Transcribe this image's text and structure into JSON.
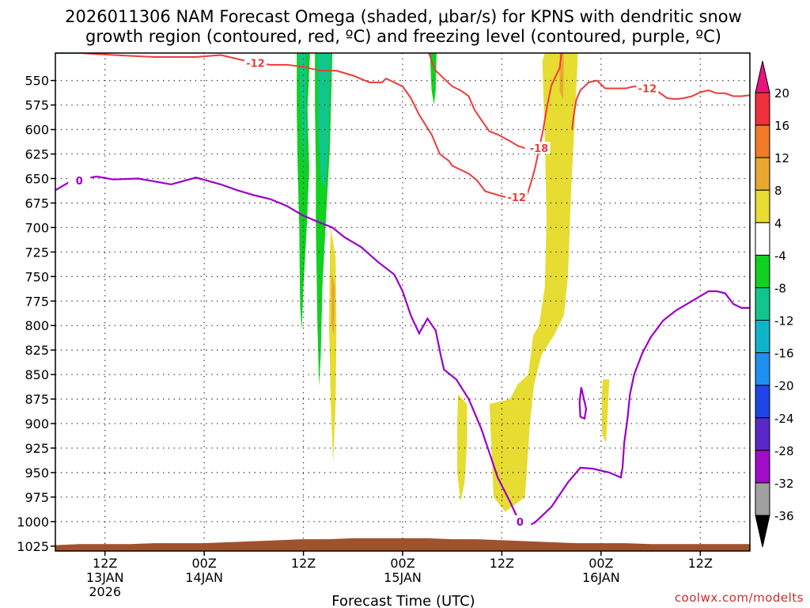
{
  "chart_data": {
    "type": "heatmap",
    "title_line1": "2026011306 NAM Forecast Omega (shaded, μbar/s) for KPNS with dendritic snow",
    "title_line2": "growth region (contoured, red, ºC) and freezing level (contoured, purple, ºC)",
    "xlabel": "Forecast Time (UTC)",
    "x_axis": {
      "units": "forecast hours from 2026011306",
      "range": [
        0,
        84
      ],
      "ticks": [
        {
          "hour": 6,
          "line1": "12Z",
          "line2": "13JAN",
          "line3": "2026"
        },
        {
          "hour": 18,
          "line1": "00Z",
          "line2": "14JAN",
          "line3": ""
        },
        {
          "hour": 30,
          "line1": "12Z",
          "line2": "",
          "line3": ""
        },
        {
          "hour": 42,
          "line1": "00Z",
          "line2": "15JAN",
          "line3": ""
        },
        {
          "hour": 54,
          "line1": "12Z",
          "line2": "",
          "line3": ""
        },
        {
          "hour": 66,
          "line1": "00Z",
          "line2": "16JAN",
          "line3": ""
        },
        {
          "hour": 78,
          "line1": "12Z",
          "line2": "",
          "line3": ""
        }
      ]
    },
    "y_axis": {
      "units": "hPa",
      "range": [
        1030,
        522
      ],
      "ticks": [
        "550",
        "575",
        "600",
        "625",
        "650",
        "675",
        "700",
        "725",
        "750",
        "775",
        "800",
        "825",
        "850",
        "875",
        "900",
        "925",
        "950",
        "975",
        "1000",
        "1025"
      ]
    },
    "colorbar": {
      "labels": [
        "20",
        "16",
        "12",
        "8",
        "4",
        "-4",
        "-8",
        "-12",
        "-16",
        "-20",
        "-24",
        "-28",
        "-32",
        "-36"
      ],
      "bins": [
        {
          "from": 16,
          "to": 20,
          "color": "#f0303c"
        },
        {
          "from": 12,
          "to": 16,
          "color": "#f07a28"
        },
        {
          "from": 8,
          "to": 12,
          "color": "#e8a830"
        },
        {
          "from": 4,
          "to": 8,
          "color": "#e6dc32"
        },
        {
          "from": -4,
          "to": 4,
          "color": "#ffffff"
        },
        {
          "from": -8,
          "to": -4,
          "color": "#10d020"
        },
        {
          "from": -12,
          "to": -8,
          "color": "#10c68c"
        },
        {
          "from": -16,
          "to": -12,
          "color": "#10b4c8"
        },
        {
          "from": -20,
          "to": -16,
          "color": "#1e90f0"
        },
        {
          "from": -24,
          "to": -20,
          "color": "#1e46e6"
        },
        {
          "from": -28,
          "to": -24,
          "color": "#5a28c8"
        },
        {
          "from": -32,
          "to": -28,
          "color": "#a00cc8"
        },
        {
          "from": -36,
          "to": -32,
          "color": "#a0a0a0"
        }
      ],
      "top_arrow_color": "#e8147c",
      "bottom_arrow_color": "#000000"
    },
    "colors": {
      "dgz": "#f03a3a",
      "freezing": "#9a00c8",
      "terrain": "#a0522d"
    },
    "omega_regions": [
      {
        "color": "#10d020",
        "pts": [
          [
            29.2,
            522
          ],
          [
            30.8,
            522
          ],
          [
            30.5,
            580
          ],
          [
            30.7,
            640
          ],
          [
            30.4,
            700
          ],
          [
            30.0,
            760
          ],
          [
            29.8,
            805
          ],
          [
            29.6,
            780
          ],
          [
            29.5,
            700
          ],
          [
            29.3,
            640
          ],
          [
            29.2,
            580
          ]
        ]
      },
      {
        "color": "#10c68c",
        "pts": [
          [
            29.5,
            522
          ],
          [
            30.3,
            522
          ],
          [
            30.3,
            600
          ],
          [
            30.0,
            650
          ],
          [
            29.8,
            600
          ],
          [
            29.6,
            550
          ]
        ]
      },
      {
        "color": "#10d020",
        "pts": [
          [
            31.4,
            522
          ],
          [
            33.5,
            522
          ],
          [
            33.2,
            620
          ],
          [
            32.8,
            680
          ],
          [
            32.3,
            760
          ],
          [
            32.1,
            830
          ],
          [
            31.9,
            862
          ],
          [
            31.7,
            800
          ],
          [
            31.5,
            700
          ],
          [
            31.5,
            640
          ],
          [
            31.4,
            580
          ]
        ]
      },
      {
        "color": "#10c68c",
        "pts": [
          [
            31.7,
            522
          ],
          [
            33.3,
            522
          ],
          [
            33.0,
            620
          ],
          [
            32.6,
            660
          ],
          [
            32.1,
            650
          ],
          [
            31.8,
            600
          ]
        ]
      },
      {
        "color": "#10d020",
        "pts": [
          [
            45.3,
            522
          ],
          [
            46.1,
            522
          ],
          [
            46.0,
            560
          ],
          [
            45.8,
            575
          ],
          [
            45.5,
            560
          ]
        ]
      },
      {
        "color": "#e6dc32",
        "pts": [
          [
            33.3,
            700
          ],
          [
            33.9,
            730
          ],
          [
            34.0,
            800
          ],
          [
            33.9,
            880
          ],
          [
            33.6,
            940
          ],
          [
            33.3,
            880
          ],
          [
            33.1,
            800
          ],
          [
            33.2,
            730
          ]
        ]
      },
      {
        "color": "#e8a830",
        "pts": [
          [
            33.4,
            745
          ],
          [
            33.8,
            760
          ],
          [
            33.7,
            810
          ],
          [
            33.4,
            800
          ]
        ]
      },
      {
        "color": "#e6dc32",
        "pts": [
          [
            59.2,
            522
          ],
          [
            63.2,
            522
          ],
          [
            63.0,
            560
          ],
          [
            62.4,
            660
          ],
          [
            62.0,
            750
          ],
          [
            61.5,
            790
          ],
          [
            60.3,
            810
          ],
          [
            58.8,
            830
          ],
          [
            57.9,
            860
          ],
          [
            57.4,
            900
          ],
          [
            56.8,
            975
          ],
          [
            54.4,
            990
          ],
          [
            53.0,
            975
          ],
          [
            52.5,
            880
          ],
          [
            55.0,
            875
          ],
          [
            55.9,
            860
          ],
          [
            57.2,
            850
          ],
          [
            57.8,
            810
          ],
          [
            58.5,
            800
          ],
          [
            59.2,
            760
          ],
          [
            59.4,
            690
          ],
          [
            59.2,
            610
          ],
          [
            58.9,
            530
          ]
        ]
      },
      {
        "color": "#e8a830",
        "pts": [
          [
            61.0,
            522
          ],
          [
            61.5,
            522
          ],
          [
            61.4,
            570
          ],
          [
            61.0,
            560
          ]
        ]
      },
      {
        "color": "#e6dc32",
        "pts": [
          [
            48.7,
            870
          ],
          [
            49.8,
            880
          ],
          [
            49.8,
            920
          ],
          [
            49.5,
            960
          ],
          [
            49.0,
            980
          ],
          [
            48.6,
            950
          ],
          [
            48.6,
            900
          ]
        ]
      },
      {
        "color": "#e6dc32",
        "pts": [
          [
            66.2,
            855
          ],
          [
            67.0,
            855
          ],
          [
            66.8,
            890
          ],
          [
            66.6,
            920
          ],
          [
            66.1,
            910
          ],
          [
            66.1,
            870
          ]
        ]
      }
    ],
    "freezing_level": {
      "label": "0",
      "pts": [
        [
          0,
          662
        ],
        [
          2,
          652
        ],
        [
          5,
          648
        ],
        [
          7,
          651
        ],
        [
          10,
          650
        ],
        [
          12,
          653
        ],
        [
          14,
          656
        ],
        [
          17,
          649
        ],
        [
          20,
          656
        ],
        [
          22,
          662
        ],
        [
          24,
          667
        ],
        [
          26,
          671
        ],
        [
          28,
          678
        ],
        [
          30,
          688
        ],
        [
          32,
          695
        ],
        [
          33.5,
          700
        ],
        [
          35,
          710
        ],
        [
          37,
          720
        ],
        [
          39,
          735
        ],
        [
          41,
          748
        ],
        [
          42,
          765
        ],
        [
          43,
          790
        ],
        [
          44,
          808
        ],
        [
          45,
          793
        ],
        [
          46,
          805
        ],
        [
          46.6,
          830
        ],
        [
          47,
          845
        ],
        [
          48.5,
          855
        ],
        [
          50,
          875
        ],
        [
          51.5,
          905
        ],
        [
          52.5,
          930
        ],
        [
          53.5,
          955
        ],
        [
          55,
          980
        ],
        [
          56,
          998
        ],
        [
          57,
          1005
        ],
        [
          58,
          1001
        ],
        [
          60,
          985
        ],
        [
          62,
          960
        ],
        [
          63.5,
          945
        ],
        [
          65,
          946
        ],
        [
          67,
          950
        ],
        [
          68.4,
          955
        ],
        [
          68.6,
          945
        ],
        [
          68.8,
          920
        ],
        [
          69.2,
          895
        ],
        [
          69.5,
          870
        ],
        [
          70,
          850
        ],
        [
          71,
          828
        ],
        [
          72,
          812
        ],
        [
          73.5,
          795
        ],
        [
          75,
          785
        ],
        [
          77,
          775
        ],
        [
          79,
          765
        ],
        [
          80,
          765
        ],
        [
          81,
          767
        ],
        [
          82,
          778
        ],
        [
          83,
          782
        ],
        [
          84,
          782
        ]
      ],
      "extra_pts": [
        [
          63.6,
          863
        ],
        [
          64.2,
          885
        ],
        [
          64.0,
          895
        ],
        [
          63.5,
          893
        ],
        [
          63.4,
          878
        ],
        [
          63.6,
          863
        ]
      ]
    },
    "dgz_contours": [
      {
        "label": "-12",
        "pts": [
          [
            0,
            522
          ],
          [
            3,
            522
          ],
          [
            7,
            524
          ],
          [
            12,
            526
          ],
          [
            17,
            526
          ],
          [
            20,
            524
          ],
          [
            22,
            528
          ],
          [
            24,
            532
          ],
          [
            26,
            534
          ],
          [
            28,
            534
          ],
          [
            30,
            536
          ],
          [
            32,
            540
          ],
          [
            34,
            540
          ],
          [
            36,
            545
          ],
          [
            38,
            552
          ],
          [
            39.5,
            552
          ],
          [
            40,
            548
          ],
          [
            42,
            556
          ],
          [
            43,
            568
          ],
          [
            44,
            585
          ],
          [
            45.5,
            605
          ],
          [
            46.5,
            625
          ],
          [
            47.6,
            632
          ],
          [
            48,
            637
          ],
          [
            50,
            645
          ],
          [
            51,
            652
          ],
          [
            52,
            663
          ],
          [
            54,
            668
          ],
          [
            55,
            670
          ],
          [
            56,
            670
          ],
          [
            57,
            668
          ],
          [
            57.5,
            655
          ],
          [
            58,
            640
          ],
          [
            58.5,
            620
          ],
          [
            59,
            600
          ],
          [
            59.5,
            575
          ],
          [
            60,
            555
          ],
          [
            61,
            537
          ],
          [
            61.2,
            522
          ]
        ]
      },
      {
        "label": "-12",
        "pts": [
          [
            45.2,
            522
          ],
          [
            45.6,
            532
          ],
          [
            46,
            540
          ],
          [
            47,
            548
          ],
          [
            48,
            556
          ],
          [
            49,
            560
          ],
          [
            50,
            566
          ],
          [
            50.7,
            580
          ],
          [
            51.5,
            590
          ],
          [
            52.5,
            602
          ],
          [
            53.5,
            605
          ],
          [
            55,
            612
          ],
          [
            56,
            617
          ],
          [
            56.8,
            619
          ]
        ]
      },
      {
        "label": "-18",
        "pts": [
          [
            57.5,
            618
          ],
          [
            58.5,
            619
          ],
          [
            59.2,
            615
          ]
        ]
      },
      {
        "label": "-12",
        "pts": [
          [
            62.5,
            600
          ],
          [
            62.7,
            585
          ],
          [
            63,
            570
          ],
          [
            63.5,
            560
          ],
          [
            64.5,
            552
          ],
          [
            65.5,
            550
          ],
          [
            66.5,
            558
          ],
          [
            69,
            558
          ],
          [
            70,
            556
          ],
          [
            72,
            558
          ],
          [
            73,
            562
          ],
          [
            74,
            568
          ],
          [
            75,
            569
          ],
          [
            76,
            568
          ],
          [
            77,
            566
          ],
          [
            78,
            562
          ],
          [
            79,
            560
          ],
          [
            80,
            563
          ],
          [
            81,
            563
          ],
          [
            82,
            566
          ],
          [
            83,
            566
          ],
          [
            84,
            565
          ]
        ]
      }
    ],
    "terrain_top": [
      [
        0,
        1024
      ],
      [
        3,
        1023
      ],
      [
        6,
        1023
      ],
      [
        9,
        1023
      ],
      [
        12,
        1022
      ],
      [
        15,
        1022
      ],
      [
        18,
        1022
      ],
      [
        21,
        1021
      ],
      [
        24,
        1020
      ],
      [
        27,
        1019
      ],
      [
        30,
        1018
      ],
      [
        33,
        1018
      ],
      [
        36,
        1017
      ],
      [
        39,
        1017
      ],
      [
        42,
        1017
      ],
      [
        45,
        1017
      ],
      [
        48,
        1018
      ],
      [
        51,
        1018
      ],
      [
        54,
        1019
      ],
      [
        57,
        1020
      ],
      [
        60,
        1021
      ],
      [
        63,
        1022
      ],
      [
        66,
        1022
      ],
      [
        69,
        1022
      ],
      [
        72,
        1023
      ],
      [
        75,
        1023
      ],
      [
        78,
        1023
      ],
      [
        81,
        1023
      ],
      [
        84,
        1023
      ]
    ],
    "credit": "coolwx.com/modelts"
  }
}
